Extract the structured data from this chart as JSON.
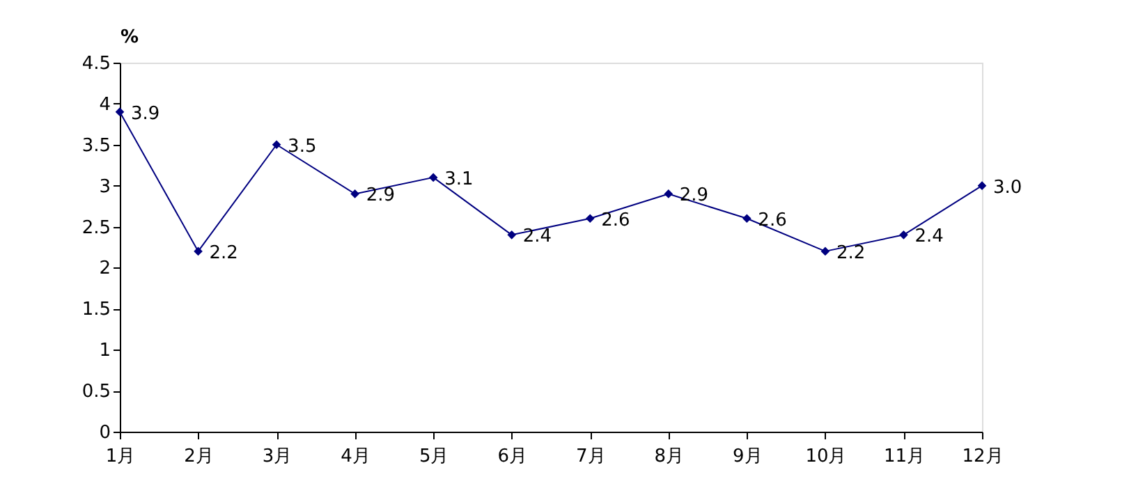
{
  "chart_data": {
    "type": "line",
    "ylabel": "%",
    "categories": [
      "1月",
      "2月",
      "3月",
      "4月",
      "5月",
      "6月",
      "7月",
      "8月",
      "9月",
      "10月",
      "11月",
      "12月"
    ],
    "series": [
      {
        "color": "#000080",
        "values": [
          3.9,
          2.2,
          3.5,
          2.9,
          3.1,
          2.4,
          2.6,
          2.9,
          2.6,
          2.2,
          2.4,
          3.0
        ],
        "value_labels": [
          "3.9",
          "2.2",
          "3.5",
          "2.9",
          "3.1",
          "2.4",
          "2.6",
          "2.9",
          "2.6",
          "2.2",
          "2.4",
          "3.0"
        ]
      }
    ],
    "ylim": [
      0,
      4.5
    ],
    "yticks": [
      0,
      0.5,
      1,
      1.5,
      2,
      2.5,
      3,
      3.5,
      4,
      4.5
    ],
    "marker": "diamond",
    "line_style": "solid",
    "grid": false
  }
}
